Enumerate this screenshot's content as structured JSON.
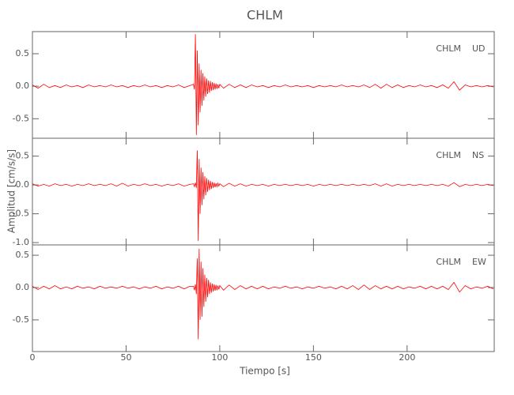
{
  "chart_data": {
    "type": "line",
    "title": "CHLM",
    "xlabel": "Tiempo [s]",
    "ylabel": "Amplitud [cm/s/s]",
    "xlim": [
      0,
      246.5
    ],
    "xticks": [
      0,
      50,
      100,
      150,
      200
    ],
    "x": [
      0,
      3,
      6,
      9,
      12,
      15,
      18,
      21,
      24,
      27,
      30,
      33,
      36,
      39,
      42,
      45,
      48,
      51,
      54,
      57,
      60,
      63,
      66,
      69,
      72,
      75,
      78,
      81,
      84,
      86,
      86.5,
      87,
      87.5,
      88,
      88.5,
      89,
      89.5,
      90,
      90.5,
      91,
      91.5,
      92,
      92.5,
      93,
      93.5,
      94,
      94.5,
      95,
      95.5,
      96,
      96.5,
      97,
      97.5,
      98,
      98.5,
      99,
      99.5,
      100,
      102,
      105,
      108,
      111,
      114,
      117,
      120,
      123,
      126,
      129,
      132,
      135,
      138,
      141,
      144,
      147,
      150,
      153,
      156,
      159,
      162,
      165,
      168,
      171,
      174,
      177,
      180,
      183,
      186,
      189,
      192,
      195,
      198,
      201,
      204,
      207,
      210,
      213,
      216,
      219,
      222,
      225,
      228,
      231,
      234,
      237,
      240,
      243,
      246
    ],
    "panels": [
      {
        "station": "CHLM",
        "component": "UD",
        "ylim": [
          -0.8,
          0.84
        ],
        "yticks": [
          -0.5,
          {
            "value": 0,
            "label": "0.0"
          },
          0.5
        ],
        "series": [
          {
            "color": "#ff0000",
            "values": [
              0.02,
              -0.03,
              0.03,
              -0.02,
              0.01,
              -0.02,
              0.02,
              -0.01,
              0.01,
              -0.02,
              0.02,
              -0.01,
              0.01,
              -0.01,
              0.02,
              -0.01,
              0.01,
              -0.02,
              0.01,
              -0.01,
              0.02,
              -0.01,
              0.01,
              -0.02,
              0.01,
              -0.01,
              0.02,
              -0.02,
              0.01,
              0.03,
              -0.05,
              0.8,
              -0.75,
              0.55,
              -0.6,
              0.35,
              -0.4,
              0.25,
              -0.3,
              0.2,
              -0.22,
              0.15,
              -0.16,
              0.12,
              -0.12,
              0.09,
              -0.1,
              0.08,
              -0.07,
              0.06,
              -0.06,
              0.05,
              -0.05,
              0.04,
              -0.04,
              0.03,
              -0.03,
              0.03,
              -0.03,
              0.03,
              -0.02,
              0.02,
              -0.02,
              0.02,
              -0.01,
              0.01,
              -0.02,
              0.01,
              -0.01,
              0.02,
              -0.01,
              0.01,
              -0.01,
              0.01,
              -0.02,
              0.01,
              -0.01,
              0.01,
              -0.01,
              0.02,
              -0.01,
              0.01,
              -0.01,
              0.02,
              -0.02,
              0.03,
              -0.03,
              0.03,
              -0.02,
              0.02,
              -0.02,
              0.01,
              -0.01,
              0.02,
              -0.01,
              0.01,
              -0.02,
              0.02,
              -0.03,
              0.07,
              -0.06,
              0.02,
              -0.01,
              0.01,
              -0.01,
              0.01,
              -0.01
            ]
          }
        ]
      },
      {
        "station": "CHLM",
        "component": "NS",
        "ylim": [
          -1.04,
          0.81
        ],
        "yticks": [
          {
            "value": -1,
            "label": "-1.0"
          },
          -0.5,
          {
            "value": 0,
            "label": "0.0"
          },
          0.5
        ],
        "series": [
          {
            "color": "#ff0000",
            "values": [
              0.02,
              -0.02,
              0.01,
              -0.02,
              0.02,
              -0.01,
              0.01,
              -0.02,
              0.01,
              -0.01,
              0.02,
              -0.01,
              0.01,
              -0.01,
              0.02,
              -0.02,
              0.03,
              -0.02,
              0.01,
              -0.01,
              0.02,
              -0.01,
              0.01,
              -0.02,
              0.01,
              -0.01,
              0.02,
              -0.02,
              0.01,
              0.02,
              -0.03,
              0.04,
              -0.05,
              0.6,
              -0.97,
              0.45,
              -0.5,
              0.3,
              -0.35,
              0.22,
              -0.25,
              0.15,
              -0.18,
              0.12,
              -0.12,
              0.09,
              -0.09,
              0.07,
              -0.07,
              0.05,
              -0.05,
              0.04,
              -0.04,
              0.03,
              -0.03,
              0.03,
              -0.02,
              0.02,
              -0.03,
              0.03,
              -0.02,
              0.02,
              -0.02,
              0.01,
              -0.01,
              0.01,
              -0.02,
              0.01,
              -0.01,
              0.01,
              -0.01,
              0.01,
              -0.01,
              0.01,
              -0.02,
              0.01,
              -0.01,
              0.01,
              -0.01,
              0.01,
              -0.01,
              0.01,
              -0.01,
              0.01,
              -0.01,
              0.02,
              -0.02,
              0.02,
              -0.02,
              0.01,
              -0.01,
              0.01,
              -0.01,
              0.01,
              -0.01,
              0.01,
              -0.01,
              0.01,
              -0.02,
              0.04,
              -0.03,
              0.01,
              -0.01,
              0.01,
              -0.01,
              0.01,
              -0.01
            ]
          }
        ]
      },
      {
        "station": "CHLM",
        "component": "EW",
        "ylim": [
          -0.99,
          0.66
        ],
        "yticks": [
          -0.5,
          {
            "value": 0,
            "label": "0.0"
          },
          0.5
        ],
        "series": [
          {
            "color": "#ff0000",
            "values": [
              0.02,
              -0.03,
              0.02,
              -0.02,
              0.03,
              -0.02,
              0.01,
              -0.02,
              0.02,
              -0.01,
              0.01,
              -0.02,
              0.02,
              -0.01,
              0.01,
              -0.01,
              0.02,
              -0.01,
              0.01,
              -0.02,
              0.01,
              -0.01,
              0.02,
              -0.02,
              0.01,
              -0.01,
              0.02,
              -0.02,
              0.02,
              0.02,
              -0.04,
              0.05,
              -0.1,
              0.45,
              -0.8,
              0.6,
              -0.5,
              0.4,
              -0.45,
              0.3,
              -0.3,
              0.2,
              -0.22,
              0.15,
              -0.15,
              0.12,
              -0.1,
              0.08,
              -0.08,
              0.06,
              -0.06,
              0.05,
              -0.05,
              0.04,
              -0.04,
              0.03,
              -0.03,
              0.03,
              -0.04,
              0.04,
              -0.03,
              0.03,
              -0.02,
              0.02,
              -0.02,
              0.02,
              -0.02,
              0.01,
              -0.01,
              0.02,
              -0.01,
              0.01,
              -0.02,
              0.01,
              -0.01,
              0.02,
              -0.01,
              0.01,
              -0.02,
              0.02,
              -0.02,
              0.03,
              -0.03,
              0.04,
              -0.03,
              0.03,
              -0.02,
              0.02,
              -0.02,
              0.02,
              -0.02,
              0.01,
              -0.01,
              0.02,
              -0.02,
              0.02,
              -0.02,
              0.02,
              -0.03,
              0.08,
              -0.07,
              0.03,
              -0.02,
              0.01,
              -0.01,
              0.02,
              -0.02
            ]
          }
        ]
      }
    ]
  }
}
